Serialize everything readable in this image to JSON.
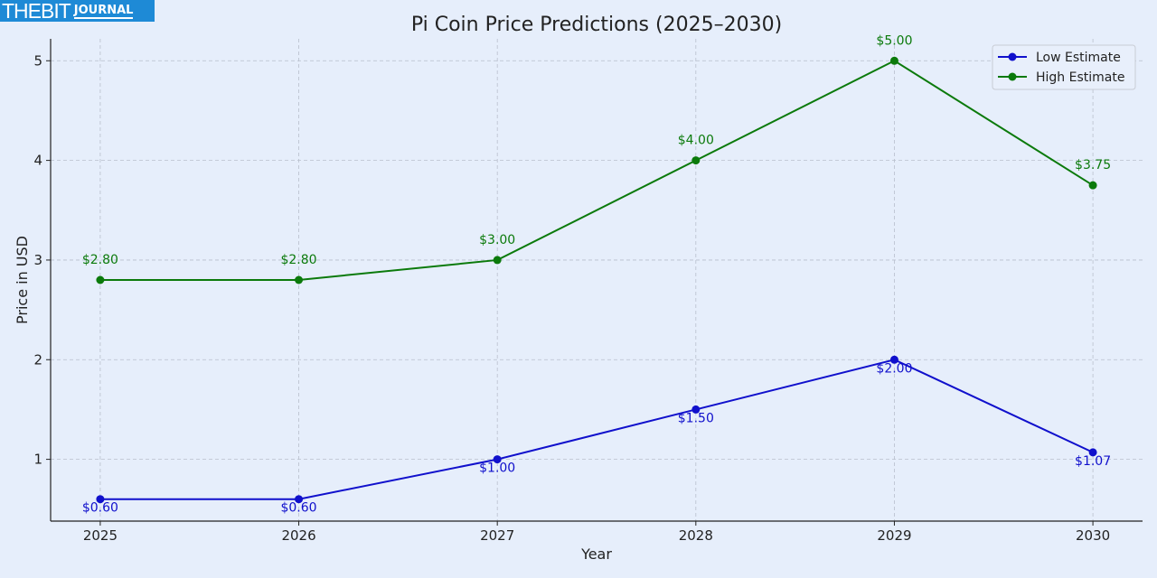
{
  "logo": {
    "text_main": "THEBIT",
    "text_sub": "JOURNAL"
  },
  "chart_data": {
    "type": "line",
    "title": "Pi Coin Price Predictions (2025–2030)",
    "xlabel": "Year",
    "ylabel": "Price in USD",
    "categories": [
      "2025",
      "2026",
      "2027",
      "2028",
      "2029",
      "2030"
    ],
    "x": [
      2025,
      2026,
      2027,
      2028,
      2029,
      2030
    ],
    "xlim": [
      2024.75,
      2030.25
    ],
    "ylim": [
      0.38,
      5.22
    ],
    "yticks": [
      "1",
      "2",
      "3",
      "4",
      "5"
    ],
    "grid": true,
    "legend_position": "top-right",
    "series": [
      {
        "name": "Low Estimate",
        "color": "#1010cc",
        "values": [
          0.6,
          0.6,
          1.0,
          1.5,
          2.0,
          1.07
        ],
        "labels": [
          "$0.60",
          "$0.60",
          "$1.00",
          "$1.50",
          "$2.00",
          "$1.07"
        ]
      },
      {
        "name": "High Estimate",
        "color": "#0b7a0b",
        "values": [
          2.8,
          2.8,
          3.0,
          4.0,
          5.0,
          3.75
        ],
        "labels": [
          "$2.80",
          "$2.80",
          "$3.00",
          "$4.00",
          "$5.00",
          "$3.75"
        ]
      }
    ]
  }
}
